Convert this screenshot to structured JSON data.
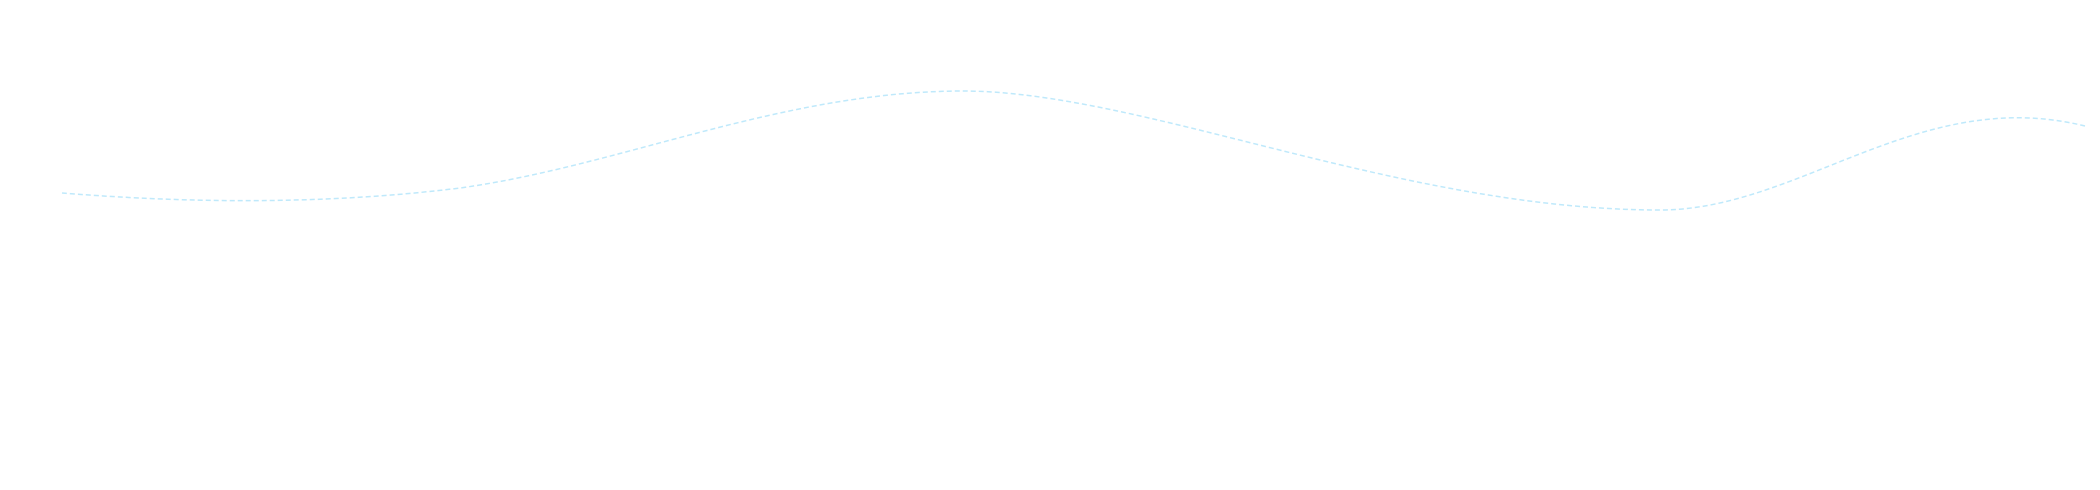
{
  "background_color": "#ffffff",
  "wave": {
    "stroke_color": "#bfe9fb",
    "style": "dashed"
  }
}
